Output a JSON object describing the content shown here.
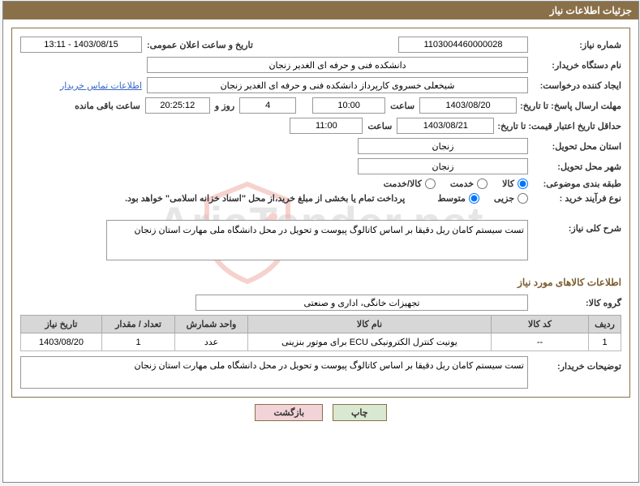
{
  "colors": {
    "header_bg": "#8a7049",
    "header_text": "#ffffff",
    "border": "#8a7049",
    "link": "#3a68c8",
    "section_title": "#7a5d2f",
    "table_header_bg": "#d7d7d7",
    "btn_print_bg": "#d9e8d0",
    "btn_back_bg": "#f2d3d8",
    "watermark_text": "#c8c8c8",
    "watermark_shield_stroke": "#d94a3a"
  },
  "header": {
    "title": "جزئیات اطلاعات نیاز"
  },
  "labels": {
    "need_no": "شماره نیاز:",
    "announce_datetime": "تاریخ و ساعت اعلان عمومی:",
    "buyer_org": "نام دستگاه خریدار:",
    "requester": "ایجاد کننده درخواست:",
    "deadline_send": "مهلت ارسال پاسخ: تا تاریخ:",
    "time": "ساعت",
    "days_and": "روز و",
    "remaining": "ساعت باقی مانده",
    "min_validity": "حداقل تاریخ اعتبار قیمت: تا تاریخ:",
    "delivery_province": "استان محل تحویل:",
    "delivery_city": "شهر محل تحویل:",
    "subject_class": "طبقه بندی موضوعی:",
    "process_type": "نوع فرآیند خرید :",
    "general_desc": "شرح کلی نیاز:",
    "items_info": "اطلاعات کالاهای مورد نیاز",
    "item_group": "گروه کالا:",
    "buyer_desc": "توضیحات خریدار:"
  },
  "fields": {
    "need_no": "1103004460000028",
    "announce_datetime": "1403/08/15 - 13:11",
    "buyer_org": "دانشکده فنی و حرفه ای الغدیر زنجان",
    "requester": "شیخعلی خسروی کارپرداز دانشکده فنی و حرفه ای الغدیر زنجان",
    "buyer_contact_link": "اطلاعات تماس خریدار",
    "deadline_date": "1403/08/20",
    "deadline_time": "10:00",
    "remaining_days": "4",
    "remaining_time": "20:25:12",
    "min_validity_date": "1403/08/21",
    "min_validity_time": "11:00",
    "delivery_province": "زنجان",
    "delivery_city": "زنجان",
    "general_desc": "تست سیستم کامان ریل دقیقا بر اساس کاتالوگ پیوست و تحویل در محل دانشگاه ملی مهارت استان زنجان",
    "item_group": "تجهیزات خانگی، اداری و صنعتی",
    "payment_note": "پرداخت تمام یا بخشی از مبلغ خرید،از محل \"اسناد خزانه اسلامی\" خواهد بود.",
    "buyer_desc": "تست سیستم کامان ریل دقیقا بر اساس کاتالوگ پیوست و تحویل در محل دانشگاه ملی مهارت استان زنجان"
  },
  "radios": {
    "subject": {
      "options": [
        "کالا",
        "خدمت",
        "کالا/خدمت"
      ],
      "selected": 0
    },
    "process": {
      "options": [
        "جزیی",
        "متوسط"
      ],
      "selected": 1
    }
  },
  "table": {
    "columns": [
      "ردیف",
      "کد کالا",
      "نام کالا",
      "واحد شمارش",
      "تعداد / مقدار",
      "تاریخ نیاز"
    ],
    "col_widths": [
      "40px",
      "120px",
      "auto",
      "90px",
      "90px",
      "100px"
    ],
    "rows": [
      [
        "1",
        "--",
        "یونیت کنترل الکترونیکی ECU برای موتور بنزینی",
        "عدد",
        "1",
        "1403/08/20"
      ]
    ]
  },
  "buttons": {
    "print": "چاپ",
    "back": "بازگشت"
  },
  "watermark": {
    "text": "AriaTender.net"
  }
}
